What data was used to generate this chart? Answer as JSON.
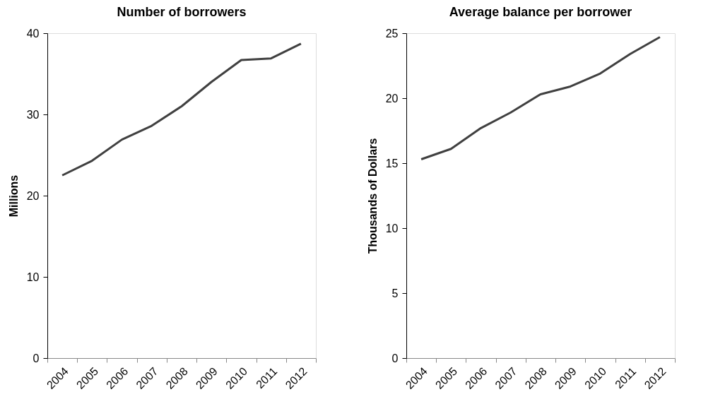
{
  "chart_data": [
    {
      "type": "line",
      "title": "Number of borrowers",
      "ylabel": "Millions",
      "categories": [
        "2004",
        "2005",
        "2006",
        "2007",
        "2008",
        "2009",
        "2010",
        "2011",
        "2012"
      ],
      "series": [
        {
          "color": "#404040",
          "values": [
            22.5,
            24.3,
            26.9,
            28.6,
            31.0,
            34.0,
            36.7,
            36.9,
            38.7
          ]
        }
      ],
      "ylim": [
        0,
        40
      ],
      "yticks": [
        0,
        10,
        20,
        30,
        40
      ],
      "grid": false,
      "legend": false,
      "marker": "none",
      "line_style": "solid"
    },
    {
      "type": "line",
      "title": "Average balance per borrower",
      "ylabel": "Thousands of Dollars",
      "categories": [
        "2004",
        "2005",
        "2006",
        "2007",
        "2008",
        "2009",
        "2010",
        "2011",
        "2012"
      ],
      "series": [
        {
          "color": "#404040",
          "values": [
            15.3,
            16.1,
            17.7,
            18.9,
            20.3,
            20.9,
            21.9,
            23.4,
            24.7
          ]
        }
      ],
      "ylim": [
        0,
        25
      ],
      "yticks": [
        0,
        5,
        10,
        15,
        20,
        25
      ],
      "grid": false,
      "legend": false,
      "marker": "none",
      "line_style": "solid"
    }
  ]
}
